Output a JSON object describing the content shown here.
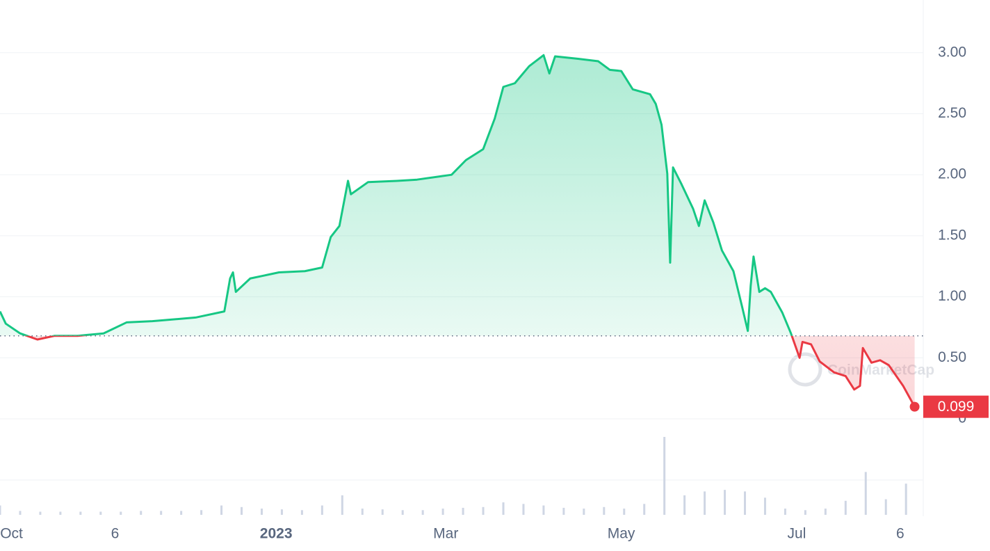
{
  "chart_data": {
    "type": "line",
    "x": [
      -4,
      -2,
      3,
      9,
      15,
      23,
      32,
      40,
      49,
      64,
      74,
      76,
      77,
      78,
      83,
      93,
      102,
      108,
      111,
      114,
      117,
      118,
      124,
      134,
      141,
      153,
      158,
      164,
      168,
      171,
      175,
      180,
      185,
      187,
      189,
      197,
      204,
      208,
      212,
      216,
      222,
      224,
      226,
      228,
      229,
      230,
      233,
      237,
      239,
      241,
      244,
      247,
      251,
      254,
      256,
      257,
      258,
      260,
      262,
      264,
      268,
      271,
      274,
      275,
      278,
      281,
      286,
      290,
      293,
      295,
      296,
      299,
      302,
      305,
      310,
      314
    ],
    "values": [
      0.88,
      0.78,
      0.7,
      0.65,
      0.68,
      0.68,
      0.7,
      0.79,
      0.8,
      0.83,
      0.88,
      1.15,
      1.2,
      1.04,
      1.15,
      1.2,
      1.21,
      1.24,
      1.49,
      1.58,
      1.95,
      1.84,
      1.94,
      1.95,
      1.96,
      2.0,
      2.12,
      2.21,
      2.46,
      2.72,
      2.75,
      2.89,
      2.98,
      2.83,
      2.97,
      2.95,
      2.93,
      2.86,
      2.85,
      2.7,
      2.66,
      2.58,
      2.41,
      2.01,
      1.28,
      2.06,
      1.92,
      1.72,
      1.58,
      1.79,
      1.61,
      1.38,
      1.21,
      0.92,
      0.72,
      1.09,
      1.33,
      1.04,
      1.07,
      1.04,
      0.87,
      0.7,
      0.5,
      0.63,
      0.61,
      0.47,
      0.38,
      0.35,
      0.24,
      0.27,
      0.58,
      0.46,
      0.48,
      0.44,
      0.27,
      0.099
    ],
    "up_color": "#16c784",
    "down_color": "#ea3943",
    "baseline": 0.68,
    "xlim": [
      -4,
      317
    ],
    "ylim": [
      0,
      3.4
    ],
    "xticks": [
      {
        "value": 0,
        "label": "Oct"
      },
      {
        "value": 36,
        "label": "6"
      },
      {
        "value": 92,
        "label": "2023",
        "bold": true
      },
      {
        "value": 151,
        "label": "Mar"
      },
      {
        "value": 212,
        "label": "May"
      },
      {
        "value": 273,
        "label": "Jul"
      },
      {
        "value": 309,
        "label": "6"
      }
    ],
    "yticks": [
      0,
      {
        "value": 0.5,
        "label": "0.50"
      },
      {
        "value": 1,
        "label": "1.00"
      },
      {
        "value": 1.5,
        "label": "1.50"
      },
      {
        "value": 2,
        "label": "2.00"
      },
      {
        "value": 2.5,
        "label": "2.50"
      },
      {
        "value": 3,
        "label": "3.00"
      }
    ],
    "grid": true,
    "volume": {
      "x": [
        -4,
        3,
        10,
        17,
        24,
        31,
        38,
        45,
        52,
        59,
        66,
        73,
        80,
        87,
        94,
        101,
        108,
        115,
        122,
        129,
        136,
        143,
        150,
        157,
        164,
        171,
        178,
        185,
        192,
        199,
        206,
        213,
        220,
        227,
        234,
        241,
        248,
        255,
        262,
        269,
        276,
        283,
        290,
        297,
        304,
        311
      ],
      "values": [
        12,
        5,
        4,
        4,
        4,
        4,
        4,
        5,
        5,
        5,
        6,
        12,
        10,
        8,
        7,
        6,
        12,
        25,
        8,
        7,
        6,
        6,
        8,
        9,
        10,
        16,
        14,
        12,
        9,
        8,
        10,
        8,
        14,
        100,
        25,
        30,
        32,
        30,
        22,
        8,
        6,
        8,
        18,
        55,
        20,
        40
      ],
      "ylim": [
        0,
        100
      ],
      "color": "#cfd6e4"
    },
    "watermark": "CoinMarketCap"
  }
}
